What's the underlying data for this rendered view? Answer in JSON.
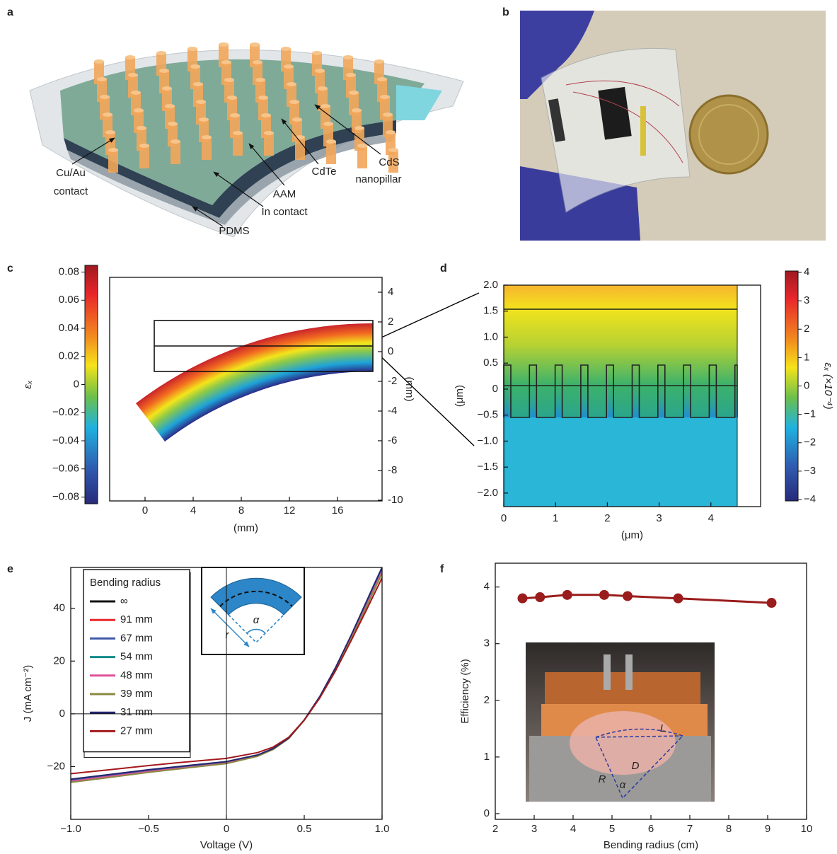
{
  "panel_a": {
    "letter": "a",
    "labels": [
      "Cu/Au",
      "contact",
      "CdTe",
      "CdS",
      "nanopillar",
      "AAM",
      "In contact",
      "PDMS"
    ]
  },
  "panel_b": {
    "letter": "b"
  },
  "chart_data": [
    {
      "type": "strain-map",
      "letter": "c",
      "xlabel": "(mm)",
      "ylabel": "(mm)",
      "xlim": [
        -2.94,
        19.7
      ],
      "ylim": [
        -10.05,
        5
      ],
      "xticks": [
        0,
        4,
        8,
        12,
        16
      ],
      "yticks": [
        4,
        2,
        0,
        -2,
        -4,
        -6,
        -8,
        -10
      ],
      "yaxis_side": "right",
      "colorbar": {
        "label": "εₓ",
        "lim": [
          -0.0848,
          0.0848
        ],
        "side": "left",
        "ticks": [
          0.08,
          0.06,
          0.04,
          0.02,
          0,
          {
            "value": -0.02,
            "label": "−0.02"
          },
          {
            "value": -0.04,
            "label": "−0.04"
          },
          {
            "value": -0.06,
            "label": "−0.06"
          },
          {
            "value": -0.08,
            "label": "−0.08"
          }
        ]
      }
    },
    {
      "type": "strain-map",
      "letter": "d",
      "xlabel": "(μm)",
      "ylabel": "(μm)",
      "xlim": [
        0,
        4.96
      ],
      "ylim": [
        -2.26,
        2
      ],
      "xticks": [
        0,
        1,
        2,
        3,
        4
      ],
      "yticks": [
        {
          "value": 2,
          "label": "2.0"
        },
        1.5,
        {
          "value": 1,
          "label": "1.0"
        },
        0.5,
        0,
        {
          "value": -0.5,
          "label": "−0.5"
        },
        {
          "value": -1,
          "label": "−1.0"
        },
        {
          "value": -1.5,
          "label": "−1.5"
        },
        {
          "value": -2,
          "label": "−2.0"
        }
      ],
      "yaxis_side": "left",
      "colorbar": {
        "label": "εₓ (×10⁻⁴)",
        "lim": [
          -4.05,
          4.05
        ],
        "side": "right",
        "ticks": [
          4,
          3,
          2,
          1,
          0,
          {
            "value": -1,
            "label": "−1"
          },
          {
            "value": -2,
            "label": "−2"
          },
          {
            "value": -3,
            "label": "−3"
          },
          {
            "value": -4,
            "label": "−4"
          }
        ]
      }
    },
    {
      "type": "line",
      "letter": "e",
      "xlabel": "Voltage (V)",
      "ylabel": "J (mA cm⁻²)",
      "xlim": [
        -1,
        1
      ],
      "ylim": [
        -40,
        55.5
      ],
      "xticks": [
        {
          "value": -1,
          "label": "−1.0"
        },
        {
          "value": -0.5,
          "label": "−0.5"
        },
        0,
        0.5,
        {
          "value": 1,
          "label": "1.0"
        }
      ],
      "yticks": [
        {
          "value": -20,
          "label": "−20"
        },
        0,
        20,
        40
      ],
      "zero_lines": true,
      "legend": {
        "title": "Bending radius",
        "position": "upper left"
      },
      "inset_labels": [
        "α",
        "r"
      ],
      "x": [
        -1,
        -0.75,
        -0.5,
        -0.25,
        0,
        0.2,
        0.3,
        0.4,
        0.5,
        0.6,
        0.7,
        0.8,
        0.9,
        0.95,
        1
      ],
      "series": [
        {
          "name": "∞",
          "color": "#111111",
          "values": [
            -25.5,
            -23.6,
            -21.8,
            -20.2,
            -18.6,
            -15.9,
            -13.4,
            -9.3,
            -2.4,
            6.3,
            16.8,
            28.7,
            41.5,
            48,
            54.5
          ]
        },
        {
          "name": "91 mm",
          "color": "#e8292d",
          "values": [
            -25.8,
            -24,
            -22,
            -20.4,
            -18.8,
            -16,
            -13.5,
            -9.3,
            -2.4,
            6.2,
            16.6,
            28.3,
            40.8,
            47.2,
            53.5
          ]
        },
        {
          "name": "67 mm",
          "color": "#3e5aa8",
          "values": [
            -25.2,
            -23.3,
            -21.5,
            -19.9,
            -18.3,
            -15.7,
            -13.2,
            -9.2,
            -2.3,
            6.5,
            17.2,
            29.3,
            42.2,
            48.8,
            55.5
          ]
        },
        {
          "name": "54 mm",
          "color": "#138a8a",
          "values": [
            -25.7,
            -23.8,
            -22,
            -20.3,
            -18.7,
            -16,
            -13.4,
            -9.3,
            -2.4,
            6.3,
            16.8,
            28.6,
            41.3,
            47.8,
            54.2
          ]
        },
        {
          "name": "48 mm",
          "color": "#e0509a",
          "values": [
            -25.6,
            -23.7,
            -21.9,
            -20.3,
            -18.7,
            -15.9,
            -13.4,
            -9.3,
            -2.4,
            6.3,
            16.7,
            28.5,
            41.1,
            47.6,
            54
          ]
        },
        {
          "name": "39 mm",
          "color": "#8a8a40",
          "values": [
            -26,
            -24.1,
            -22.2,
            -20.5,
            -18.9,
            -16.1,
            -13.5,
            -9.4,
            -2.5,
            6.1,
            16.5,
            28.2,
            40.6,
            47,
            53.2
          ]
        },
        {
          "name": "31 mm",
          "color": "#22266e",
          "values": [
            -24.8,
            -23,
            -21.2,
            -19.6,
            -18.1,
            -15.6,
            -13.2,
            -9.2,
            -2.3,
            6.6,
            17.4,
            29.6,
            42.6,
            49.2,
            55.5
          ]
        },
        {
          "name": "27 mm",
          "color": "#a4191d",
          "values": [
            -22.7,
            -21.2,
            -19.6,
            -18.2,
            -16.9,
            -14.7,
            -12.6,
            -8.9,
            -2.4,
            6,
            16.2,
            27.6,
            39.4,
            45.5,
            51.5
          ]
        }
      ]
    },
    {
      "type": "line",
      "letter": "f",
      "xlabel": "Bending radius (cm)",
      "ylabel": "Efficiency (%)",
      "xlim": [
        2,
        10
      ],
      "ylim": [
        -0.1,
        4.42
      ],
      "xticks": [
        2,
        3,
        4,
        5,
        6,
        7,
        8,
        9,
        10
      ],
      "yticks": [
        0,
        1,
        2,
        3,
        4
      ],
      "markers": true,
      "inset_labels": [
        "L",
        "D",
        "R",
        "α"
      ],
      "x": [
        2.7,
        3.15,
        3.85,
        4.8,
        5.4,
        6.7,
        9.1
      ],
      "values": [
        3.8,
        3.82,
        3.86,
        3.86,
        3.84,
        3.8,
        3.72
      ],
      "color": "#9a1c1c"
    }
  ]
}
